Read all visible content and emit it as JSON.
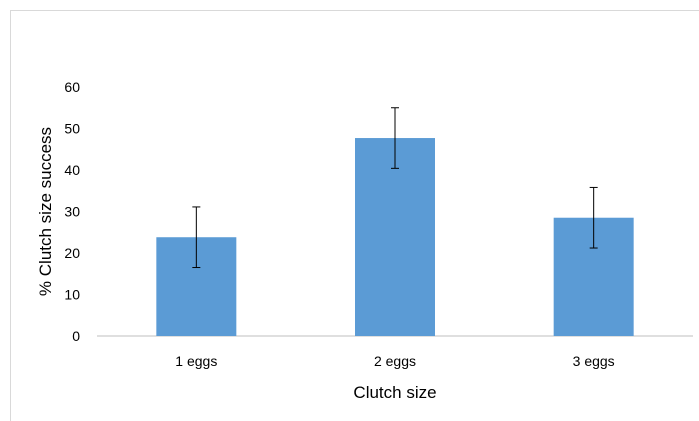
{
  "chart_data": {
    "type": "bar",
    "categories": [
      "1 eggs",
      "2 eggs",
      "3 eggs"
    ],
    "values": [
      23.8,
      47.7,
      28.5
    ],
    "error": [
      7.3,
      7.3,
      7.3
    ],
    "title": "",
    "xlabel": "Clutch size",
    "ylabel": "% Clutch size success",
    "ylim": [
      0,
      60
    ],
    "yticks": [
      0,
      10,
      20,
      30,
      40,
      50,
      60
    ],
    "grid": false,
    "legend": "none",
    "bar_color": "#5b9bd5",
    "axis_color": "#bfbfbf",
    "error_color": "#000000"
  }
}
